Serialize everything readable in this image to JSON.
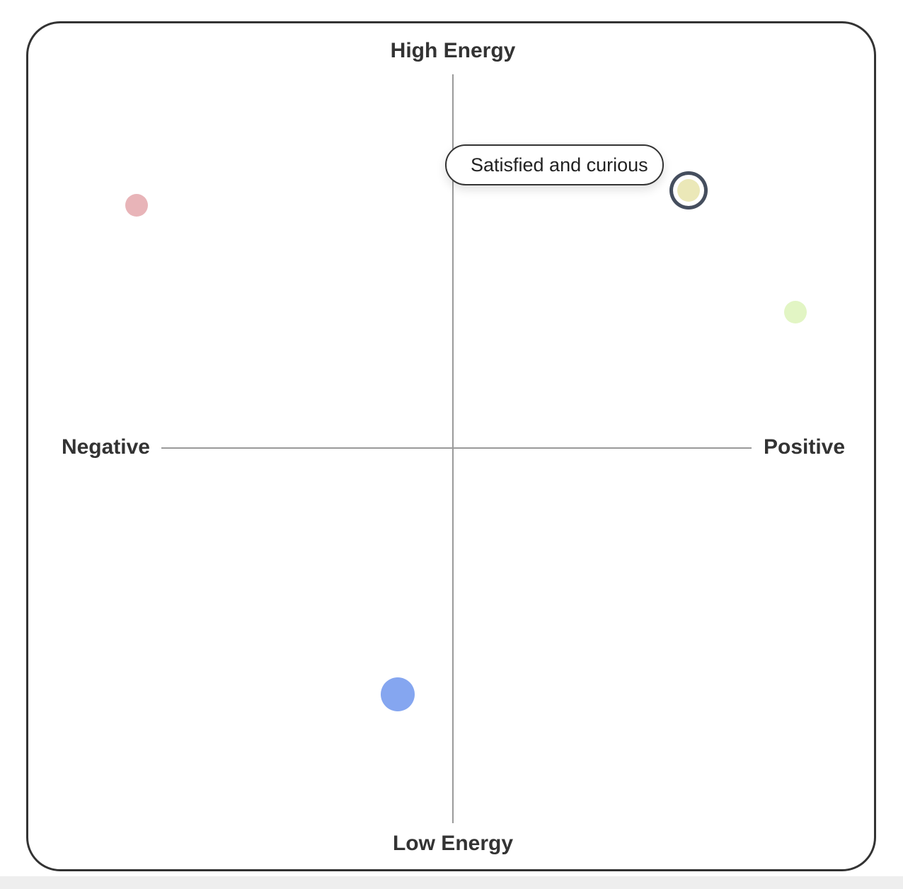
{
  "chart_data": {
    "type": "scatter",
    "axis_labels": {
      "top": "High Energy",
      "bottom": "Low Energy",
      "left": "Negative",
      "right": "Positive"
    },
    "xlim": [
      -1,
      1
    ],
    "ylim": [
      -1,
      1
    ],
    "points": [
      {
        "x": -0.86,
        "y": 0.66,
        "size": 32,
        "color": "#e8b4b8"
      },
      {
        "x": 0.64,
        "y": 0.7,
        "size": 32,
        "color": "#ebe8b8",
        "selected": true,
        "label": "Satisfied and curious"
      },
      {
        "x": 0.93,
        "y": 0.37,
        "size": 32,
        "color": "#e2f5c4"
      },
      {
        "x": -0.15,
        "y": -0.67,
        "size": 48,
        "color": "#85a6f0"
      }
    ]
  }
}
